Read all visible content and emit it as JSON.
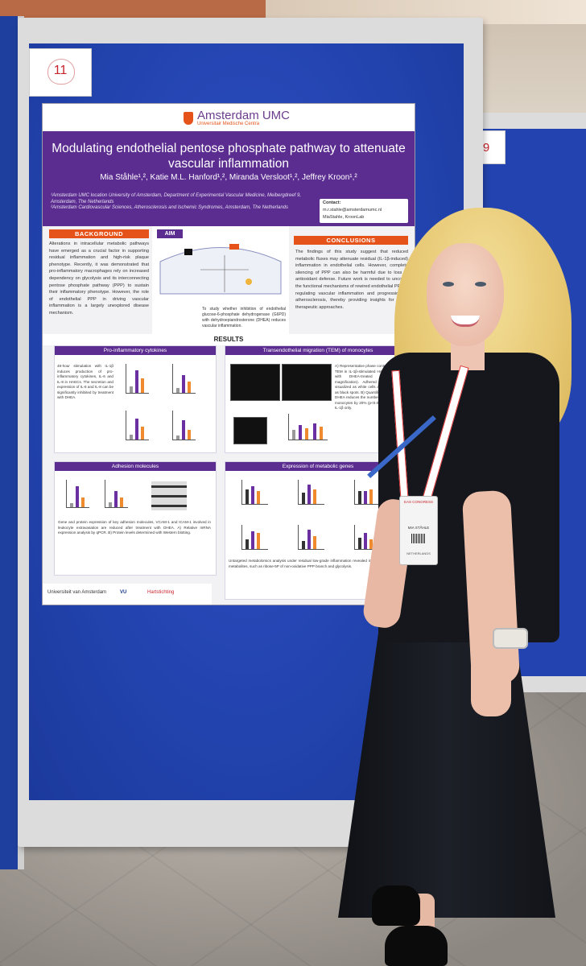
{
  "board": {
    "number": "11",
    "right_number": "9"
  },
  "poster": {
    "logo": "Amsterdam UMC",
    "logo_sub": "Universitair Medische Centra",
    "title": "Modulating endothelial pentose phosphate pathway to attenuate vascular inflammation",
    "authors": "Mia Ståhle¹,², Katie M.L. Hanford¹,², Miranda Versloot¹,², Jeffrey Kroon¹,²",
    "affiliation_1": "¹Amsterdam UMC location University of Amsterdam, Department of Experimental Vascular Medicine, Meibergdreef 9, Amsterdam, The Netherlands",
    "affiliation_2": "²Amsterdam Cardiovascular Sciences, Atherosclerosis and Ischemic Syndromes, Amsterdam, The Netherlands",
    "contact_label": "Contact:",
    "contact_email": "m.r.stahle@amsterdamumc.nl",
    "contact_social": "MiaStahle, KroonLab",
    "background_head": "BACKGROUND",
    "background_text": "Alterations in intracellular metabolic pathways have emerged as a crucial factor in supporting residual inflammation and high-risk plaque phenotype. Recently, it was demonstrated that pro-inflammatory macrophages rely on increased dependency on glycolysis and its interconnecting pentose phosphate pathway (PPP) to sustain their inflammatory phenotype. However, the role of endothelial PPP in driving vascular inflammation is a largely unexplored disease mechanism.",
    "aim_head": "AIM",
    "aim_text": "To study whether inhibition of endothelial glucose-6-phosphate dehydrogenase (G6PD) with dehydroepiandrosterone (DHEA) reduces vascular inflammation.",
    "conclusions_head": "CONCLUSIONS",
    "conclusions_text": "The findings of this study suggest that reduced metabolic fluxes may attenuate residual (IL-1β-induced) inflammation in endothelial cells. However, complete silencing of PPP can also be harmful due to loss of antioxidant defense. Future work is needed to uncover the functional mechanisms of rewired endothelial PPP in regulating vascular inflammation and progression of atherosclerosis, thereby providing insights for novel therapeutic approaches.",
    "results_head": "RESULTS",
    "panel_cytokines": "Pro-inflammatory cytokines",
    "cytokines_text": "48-hour stimulation with IL-1β induces production of pro-inflammatory cytokines, IL-6 and IL-8 in HAECs. The secretion and expression of IL-6 and IL-8 can be significantly inhibited by treatment with DHEA.",
    "panel_tem": "Transendothelial migration (TEM) of monocytes",
    "tem_text": "A) Representative phase contrast images of TEM in IL-1β-stimulated HAECs compared with DHEA-treated HAECs (10x magnification). Adhered monocytes are visualized as white cells and transmigrated as black spots. B) Quantification shows that DHEA reduces the number of transmigrated monocytes by 20% (p<0.05) compared with IL-1β only.",
    "panel_adhesion": "Adhesion molecules",
    "adhesion_text": "Gene and protein expression of key adhesion molecules, VCAM-1 and ICAM-1 involved in leukocyte extravasation are reduced after treatment with DHEA. A) Relative mRNA expression analysis by qPCR. B) Protein levels determined with Western blotting.",
    "panel_metabolic": "Expression of metabolic genes",
    "metabolic_text": "Untargeted metabolomics analysis under residual low-grade inflammation revealed increase in several key metabolites, such as ribose-5P of non-oxidative PPP branch and glycolysis.",
    "footer_logos": [
      "Universiteit van Amsterdam",
      "VU",
      "Hartstichting"
    ]
  },
  "badge": {
    "event": "EAS CONGRESS",
    "country": "NETHERLANDS",
    "name": "MIA STÅHLE"
  },
  "colors": {
    "board_blue": "#2344b0",
    "poster_purple": "#5c2d91",
    "accent_orange": "#e5531a",
    "bar_purple": "#6a2fa0",
    "bar_orange": "#ef8a2e"
  }
}
